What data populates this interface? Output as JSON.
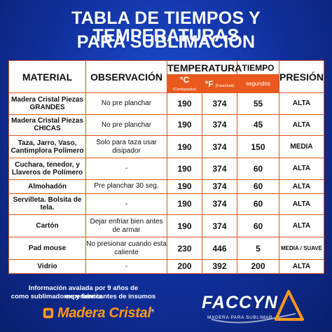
{
  "title": {
    "line1": "TABLA DE TIEMPOS Y TEMPERATURAS",
    "line2": "PARA SUBLIMACIÓN"
  },
  "headers": {
    "material": "MATERIAL",
    "observacion": "OBSERVACIÓN",
    "temperatura": "TEMPERATURA",
    "tiempo": "TIEMPO",
    "presion": "PRESIÓN",
    "celsius": "°C",
    "celsius_note": "(Centígrados)",
    "fahrenheit": "°F",
    "fahrenheit_note": "(Farenheit)",
    "segundos": "segundos"
  },
  "rows": [
    {
      "material": "Madera Cristal Piezas GRANDES",
      "observacion": "No pre planchar",
      "c": "190",
      "f": "374",
      "tiempo": "55",
      "presion": "ALTA"
    },
    {
      "material": "Madera Cristal Piezas CHICAS",
      "observacion": "No pre planchar",
      "c": "190",
      "f": "374",
      "tiempo": "45",
      "presion": "ALTA"
    },
    {
      "material": "Taza, Jarro, Vaso, Cantimplora Polímero",
      "observacion": "Solo para taza usar disipador",
      "c": "190",
      "f": "374",
      "tiempo": "150",
      "presion": "MEDIA"
    },
    {
      "material": "Cuchara, tenedor, y Llaveros de Polímero",
      "observacion": "-",
      "c": "190",
      "f": "374",
      "tiempo": "60",
      "presion": "ALTA"
    },
    {
      "material": "Almohadón",
      "observacion": "Pre planchar 30 seg.",
      "c": "190",
      "f": "374",
      "tiempo": "60",
      "presion": "ALTA"
    },
    {
      "material": "Servilleta. Bolsita de tela.",
      "observacion": "-",
      "c": "190",
      "f": "374",
      "tiempo": "60",
      "presion": "ALTA"
    },
    {
      "material": "Cartón",
      "observacion": "Dejar enfriar bien antes de armar",
      "c": "190",
      "f": "374",
      "tiempo": "60",
      "presion": "ALTA"
    },
    {
      "material": "Pad mouse",
      "observacion": "No presionar cuando esta caliente",
      "c": "230",
      "f": "446",
      "tiempo": "5",
      "presion": "MEDIA / SUAVE"
    },
    {
      "material": "Vidrio",
      "observacion": "-",
      "c": "200",
      "f": "392",
      "tiempo": "200",
      "presion": "ALTA"
    }
  ],
  "footer": {
    "info_line1": "Información avalada por 9 años de experiencia",
    "info_line2": "como sublimadores y fabricantes de insumos",
    "brand_left": "Madera Cristal",
    "brand_left_tm": "®",
    "brand_right": "FACCYN",
    "brand_right_tagline": "MADERA PARA SUBLIMAR"
  },
  "colors": {
    "background": "#1240c0",
    "accent_orange": "#ea5a1f",
    "brand_orange": "#ff9a1a",
    "table_bg": "#ffffff"
  }
}
